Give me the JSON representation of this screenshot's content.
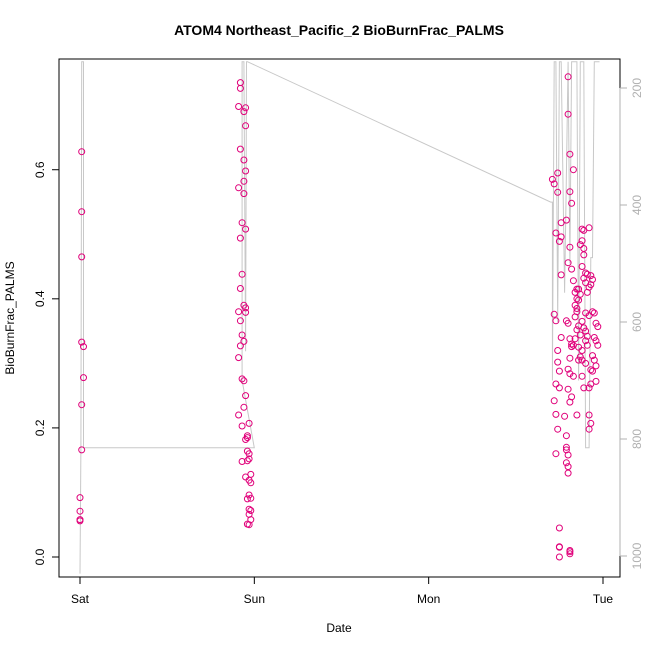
{
  "chart_data": {
    "type": "scatter",
    "title": "ATOM4 Northeast_Pacific_2 BioBurnFrac_PALMS",
    "xlabel": "Date",
    "ylabel": "BioBurnFrac_PALMS",
    "xlim": [
      0,
      3.0
    ],
    "ylim": [
      0,
      0.77
    ],
    "x_ticks": [
      {
        "value": 0,
        "label": "Sat"
      },
      {
        "value": 1,
        "label": "Sun"
      },
      {
        "value": 2,
        "label": "Mon"
      },
      {
        "value": 3,
        "label": "Tue"
      }
    ],
    "y_ticks": [
      {
        "value": 0.0,
        "label": "0.0"
      },
      {
        "value": 0.2,
        "label": "0.2"
      },
      {
        "value": 0.4,
        "label": "0.4"
      },
      {
        "value": 0.6,
        "label": "0.6"
      }
    ],
    "right_axis": {
      "ticks": [
        {
          "value": 200,
          "label": "200"
        },
        {
          "value": 400,
          "label": "400"
        },
        {
          "value": 600,
          "label": "600"
        },
        {
          "value": 800,
          "label": "800"
        },
        {
          "value": 1000,
          "label": "1000"
        }
      ],
      "range": [
        1030,
        155
      ],
      "color": "#b0b0b0"
    },
    "grid": false,
    "point_color": "#e0007a",
    "line_color": "#c8c8c8",
    "series": [
      {
        "points": [
          [
            0.01,
            0.628
          ],
          [
            0.01,
            0.535
          ],
          [
            0.01,
            0.465
          ],
          [
            0.01,
            0.333
          ],
          [
            0.02,
            0.326
          ],
          [
            0.02,
            0.278
          ],
          [
            0.01,
            0.236
          ],
          [
            0.01,
            0.166
          ],
          [
            0.0,
            0.092
          ],
          [
            0.0,
            0.071
          ],
          [
            0.0,
            0.058
          ],
          [
            0.0,
            0.056
          ],
          [
            0.92,
            0.735
          ],
          [
            0.92,
            0.726
          ],
          [
            0.91,
            0.698
          ],
          [
            0.95,
            0.696
          ],
          [
            0.94,
            0.69
          ],
          [
            0.95,
            0.668
          ],
          [
            0.92,
            0.632
          ],
          [
            0.94,
            0.615
          ],
          [
            0.95,
            0.598
          ],
          [
            0.94,
            0.582
          ],
          [
            0.91,
            0.572
          ],
          [
            0.94,
            0.563
          ],
          [
            0.93,
            0.518
          ],
          [
            0.95,
            0.508
          ],
          [
            0.92,
            0.494
          ],
          [
            0.93,
            0.438
          ],
          [
            0.92,
            0.416
          ],
          [
            0.94,
            0.39
          ],
          [
            0.95,
            0.386
          ],
          [
            0.91,
            0.38
          ],
          [
            0.95,
            0.379
          ],
          [
            0.92,
            0.366
          ],
          [
            0.93,
            0.344
          ],
          [
            0.94,
            0.334
          ],
          [
            0.92,
            0.327
          ],
          [
            0.91,
            0.309
          ],
          [
            0.93,
            0.276
          ],
          [
            0.94,
            0.273
          ],
          [
            0.95,
            0.25
          ],
          [
            0.91,
            0.22
          ],
          [
            0.94,
            0.232
          ],
          [
            0.97,
            0.207
          ],
          [
            0.93,
            0.203
          ],
          [
            0.96,
            0.188
          ],
          [
            0.96,
            0.185
          ],
          [
            0.95,
            0.182
          ],
          [
            0.96,
            0.164
          ],
          [
            0.97,
            0.16
          ],
          [
            0.97,
            0.152
          ],
          [
            0.96,
            0.149
          ],
          [
            0.93,
            0.148
          ],
          [
            0.98,
            0.128
          ],
          [
            0.95,
            0.124
          ],
          [
            0.97,
            0.119
          ],
          [
            0.98,
            0.115
          ],
          [
            0.97,
            0.096
          ],
          [
            0.98,
            0.091
          ],
          [
            0.96,
            0.09
          ],
          [
            0.97,
            0.074
          ],
          [
            0.98,
            0.072
          ],
          [
            0.97,
            0.066
          ],
          [
            0.98,
            0.058
          ],
          [
            0.96,
            0.051
          ],
          [
            0.97,
            0.05
          ],
          [
            2.71,
            0.585
          ],
          [
            2.72,
            0.578
          ],
          [
            2.74,
            0.595
          ],
          [
            2.74,
            0.565
          ],
          [
            2.76,
            0.518
          ],
          [
            2.73,
            0.502
          ],
          [
            2.76,
            0.496
          ],
          [
            2.75,
            0.489
          ],
          [
            2.76,
            0.437
          ],
          [
            2.72,
            0.376
          ],
          [
            2.73,
            0.366
          ],
          [
            2.76,
            0.34
          ],
          [
            2.74,
            0.32
          ],
          [
            2.74,
            0.302
          ],
          [
            2.75,
            0.288
          ],
          [
            2.73,
            0.268
          ],
          [
            2.75,
            0.262
          ],
          [
            2.72,
            0.242
          ],
          [
            2.73,
            0.221
          ],
          [
            2.74,
            0.198
          ],
          [
            2.73,
            0.16
          ],
          [
            2.75,
            0.045
          ],
          [
            2.75,
            0.016
          ],
          [
            2.75,
            0.015
          ],
          [
            2.75,
            0.0
          ],
          [
            2.8,
            0.744
          ],
          [
            2.8,
            0.686
          ],
          [
            2.81,
            0.624
          ],
          [
            2.83,
            0.6
          ],
          [
            2.81,
            0.566
          ],
          [
            2.82,
            0.548
          ],
          [
            2.79,
            0.522
          ],
          [
            2.81,
            0.48
          ],
          [
            2.8,
            0.456
          ],
          [
            2.82,
            0.446
          ],
          [
            2.79,
            0.366
          ],
          [
            2.8,
            0.362
          ],
          [
            2.81,
            0.338
          ],
          [
            2.82,
            0.33
          ],
          [
            2.82,
            0.326
          ],
          [
            2.81,
            0.308
          ],
          [
            2.8,
            0.291
          ],
          [
            2.81,
            0.284
          ],
          [
            2.83,
            0.28
          ],
          [
            2.8,
            0.26
          ],
          [
            2.82,
            0.248
          ],
          [
            2.81,
            0.24
          ],
          [
            2.78,
            0.218
          ],
          [
            2.79,
            0.188
          ],
          [
            2.79,
            0.17
          ],
          [
            2.79,
            0.166
          ],
          [
            2.8,
            0.158
          ],
          [
            2.79,
            0.146
          ],
          [
            2.8,
            0.14
          ],
          [
            2.8,
            0.13
          ],
          [
            2.81,
            0.01
          ],
          [
            2.81,
            0.005
          ],
          [
            2.81,
            0.008
          ],
          [
            2.83,
            0.428
          ],
          [
            2.84,
            0.41
          ],
          [
            2.85,
            0.4
          ],
          [
            2.84,
            0.39
          ],
          [
            2.85,
            0.385
          ],
          [
            2.84,
            0.372
          ],
          [
            2.86,
            0.358
          ],
          [
            2.85,
            0.352
          ],
          [
            2.87,
            0.344
          ],
          [
            2.86,
            0.325
          ],
          [
            2.88,
            0.32
          ],
          [
            2.87,
            0.31
          ],
          [
            2.86,
            0.305
          ],
          [
            2.85,
            0.415
          ],
          [
            2.86,
            0.415
          ],
          [
            2.87,
            0.407
          ],
          [
            2.86,
            0.398
          ],
          [
            2.85,
            0.38
          ],
          [
            2.84,
            0.338
          ],
          [
            2.83,
            0.328
          ],
          [
            2.85,
            0.22
          ],
          [
            2.88,
            0.508
          ],
          [
            2.89,
            0.506
          ],
          [
            2.88,
            0.49
          ],
          [
            2.87,
            0.484
          ],
          [
            2.89,
            0.478
          ],
          [
            2.89,
            0.468
          ],
          [
            2.88,
            0.45
          ],
          [
            2.9,
            0.44
          ],
          [
            2.91,
            0.438
          ],
          [
            2.89,
            0.432
          ],
          [
            2.9,
            0.425
          ],
          [
            2.92,
            0.418
          ],
          [
            2.91,
            0.41
          ],
          [
            2.9,
            0.378
          ],
          [
            2.92,
            0.374
          ],
          [
            2.88,
            0.365
          ],
          [
            2.89,
            0.355
          ],
          [
            2.9,
            0.35
          ],
          [
            2.91,
            0.342
          ],
          [
            2.9,
            0.335
          ],
          [
            2.91,
            0.328
          ],
          [
            2.88,
            0.305
          ],
          [
            2.9,
            0.3
          ],
          [
            2.88,
            0.28
          ],
          [
            2.89,
            0.262
          ],
          [
            2.92,
            0.51
          ],
          [
            2.93,
            0.436
          ],
          [
            2.94,
            0.43
          ],
          [
            2.93,
            0.422
          ],
          [
            2.94,
            0.38
          ],
          [
            2.95,
            0.378
          ],
          [
            2.96,
            0.362
          ],
          [
            2.97,
            0.357
          ],
          [
            2.95,
            0.34
          ],
          [
            2.96,
            0.335
          ],
          [
            2.97,
            0.328
          ],
          [
            2.94,
            0.312
          ],
          [
            2.95,
            0.305
          ],
          [
            2.96,
            0.296
          ],
          [
            2.93,
            0.29
          ],
          [
            2.94,
            0.288
          ],
          [
            2.96,
            0.272
          ],
          [
            2.93,
            0.268
          ],
          [
            2.92,
            0.262
          ],
          [
            2.92,
            0.22
          ],
          [
            2.93,
            0.207
          ],
          [
            2.92,
            0.198
          ]
        ]
      }
    ],
    "altitude_line": [
      [
        0.0,
        1030
      ],
      [
        0.005,
        815
      ],
      [
        0.01,
        155
      ],
      [
        0.02,
        155
      ],
      [
        0.02,
        815
      ],
      [
        0.9,
        815
      ],
      [
        1.0,
        815
      ],
      [
        0.93,
        700
      ],
      [
        0.93,
        155
      ],
      [
        0.94,
        155
      ],
      [
        0.95,
        650
      ],
      [
        0.955,
        155
      ],
      [
        0.96,
        155
      ],
      [
        2.7,
        395
      ],
      [
        2.71,
        395
      ],
      [
        2.71,
        700
      ],
      [
        2.72,
        155
      ],
      [
        2.73,
        155
      ],
      [
        2.74,
        600
      ],
      [
        2.75,
        155
      ],
      [
        2.76,
        155
      ],
      [
        2.78,
        550
      ],
      [
        2.8,
        155
      ],
      [
        2.81,
        500
      ],
      [
        2.82,
        155
      ],
      [
        2.85,
        155
      ],
      [
        2.86,
        700
      ],
      [
        2.87,
        155
      ],
      [
        2.89,
        155
      ],
      [
        2.9,
        815
      ],
      [
        2.92,
        815
      ],
      [
        2.93,
        490
      ],
      [
        2.94,
        490
      ],
      [
        2.95,
        155
      ],
      [
        2.97,
        155
      ],
      [
        2.98,
        155
      ]
    ]
  }
}
